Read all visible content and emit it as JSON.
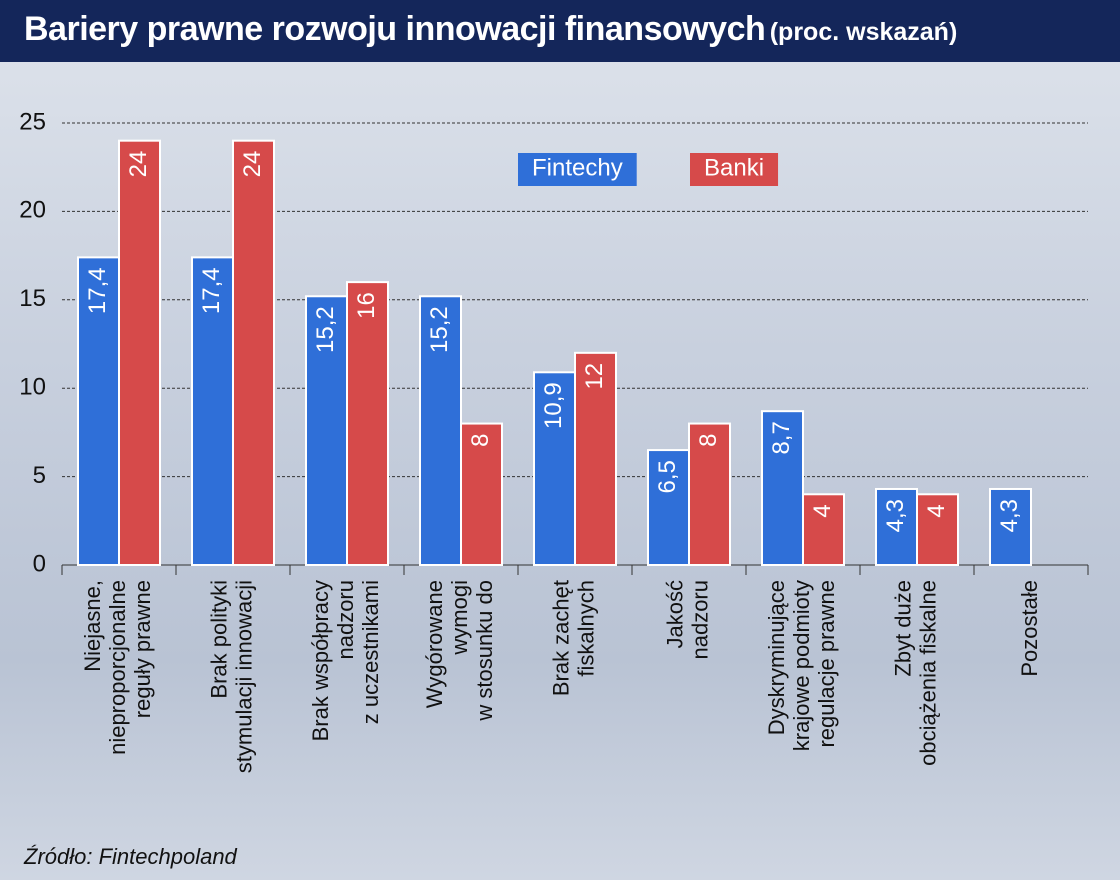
{
  "chart_data": {
    "type": "bar",
    "title": "Bariery prawne rozwoju innowacji finansowych",
    "subtitle": "(proc. wskazań)",
    "source": "Źródło: Fintechpoland",
    "categories": [
      [
        "Niejasne,",
        "nieproporcjonalne",
        "reguły prawne"
      ],
      [
        "Brak polityki",
        "stymulacji innowacji"
      ],
      [
        "Brak współpracy",
        "nadzoru",
        "z uczestnikami"
      ],
      [
        "Wygórowane",
        "wymogi",
        "w stosunku do"
      ],
      [
        "Brak zachęt",
        "fiskalnych"
      ],
      [
        "Jakość",
        "nadzoru"
      ],
      [
        "Dyskryminujące",
        "krajowe podmioty",
        "regulacje prawne"
      ],
      [
        "Zbyt duże",
        "obciążenia fiskalne"
      ],
      [
        "Pozostałe"
      ]
    ],
    "series": [
      {
        "name": "Fintechy",
        "color": "#2f6fd8",
        "values": [
          17.4,
          17.4,
          15.2,
          15.2,
          10.9,
          6.5,
          8.7,
          4.3,
          4.3
        ],
        "value_labels": [
          "17,4",
          "17,4",
          "15,2",
          "15,2",
          "10,9",
          "6,5",
          "8,7",
          "4,3",
          "4,3"
        ]
      },
      {
        "name": "Banki",
        "color": "#d64a4a",
        "values": [
          24,
          24,
          16,
          8,
          12,
          8,
          4,
          4,
          null
        ]
      }
    ],
    "ylim": [
      0,
      25
    ],
    "yticks": [
      0,
      5,
      10,
      15,
      20,
      25
    ],
    "grid": true
  }
}
